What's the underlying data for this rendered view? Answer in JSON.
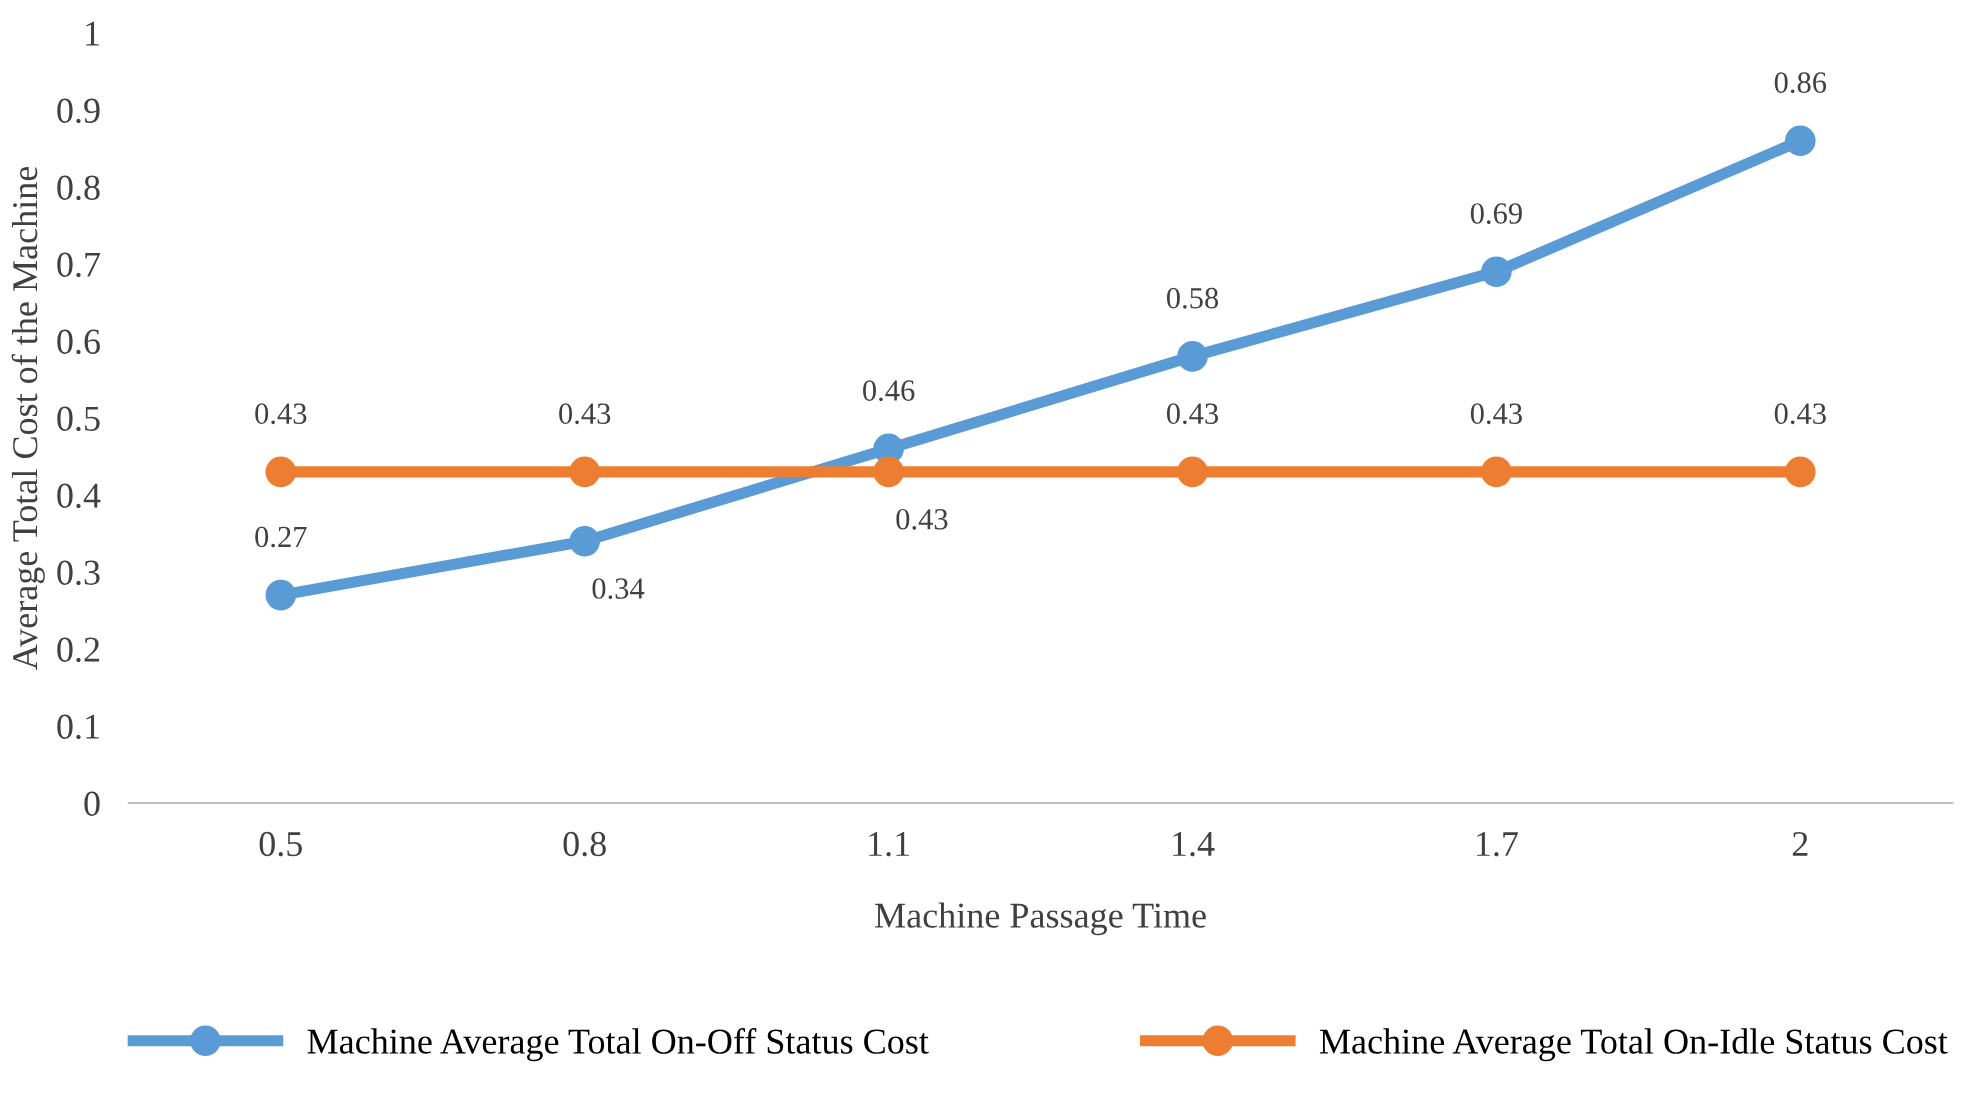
{
  "chart_data": {
    "type": "line",
    "xlabel": "Machine Passage Time",
    "ylabel": "Average Total Cost of the Machine",
    "categories": [
      "0.5",
      "0.8",
      "1.1",
      "1.4",
      "1.7",
      "2"
    ],
    "series": [
      {
        "name": "Machine Average Total On-Off Status Cost",
        "color": "#5b9bd5",
        "values": [
          0.27,
          0.34,
          0.46,
          0.58,
          0.69,
          0.86
        ]
      },
      {
        "name": "Machine Average Total On-Idle Status Cost",
        "color": "#ed7d31",
        "values": [
          0.43,
          0.43,
          0.43,
          0.43,
          0.43,
          0.43
        ]
      }
    ],
    "ylim": [
      0,
      1
    ],
    "yticks": [
      0,
      0.1,
      0.2,
      0.3,
      0.4,
      0.5,
      0.6,
      0.7,
      0.8,
      0.9,
      1
    ],
    "grid": false,
    "legend": "bottom",
    "marker": "circle",
    "line_style": "solid",
    "data_labels": true
  }
}
